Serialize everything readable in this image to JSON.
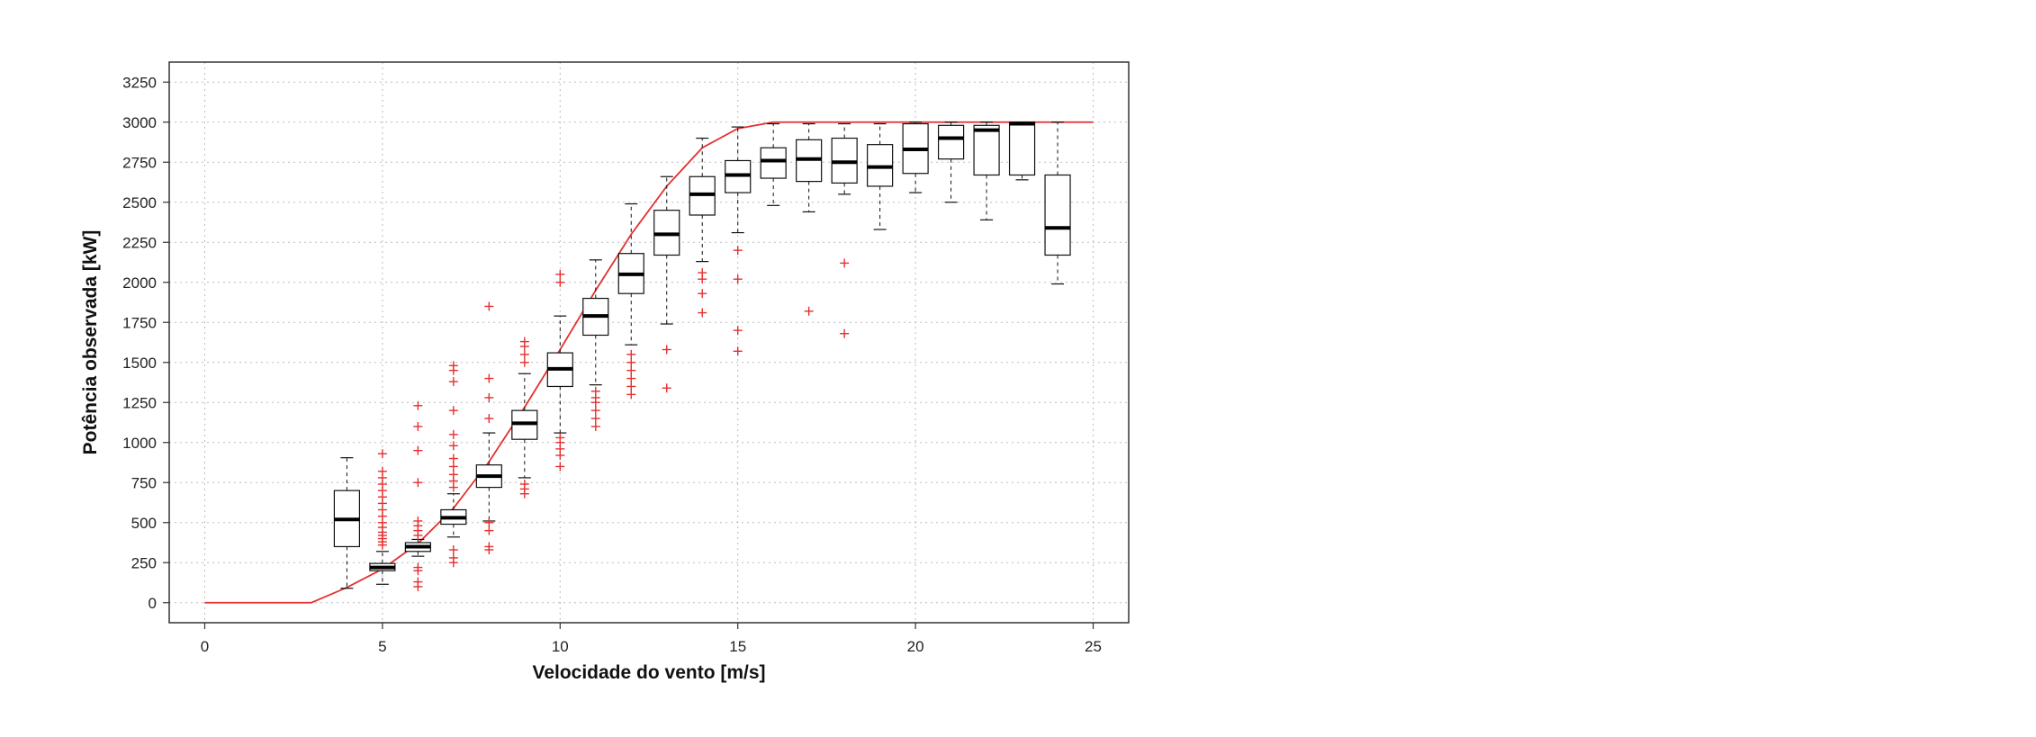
{
  "chart_data": {
    "type": "box",
    "title": "",
    "xlabel": "Velocidade do vento [m/s]",
    "ylabel": "Potência observada [kW]",
    "xlim": [
      -1,
      26
    ],
    "ylim": [
      -125,
      3375
    ],
    "xticks": [
      0,
      5,
      10,
      15,
      20,
      25
    ],
    "yticks": [
      0,
      250,
      500,
      750,
      1000,
      1250,
      1500,
      1750,
      2000,
      2250,
      2500,
      2750,
      3000,
      3250
    ],
    "grid": true,
    "legend": "none",
    "colors": {
      "box": "#111111",
      "outlier": "#e53030",
      "curve": "#e53030",
      "grid": "#bbbbbb"
    },
    "boxes": [
      {
        "x": 4,
        "whisker_low": 90,
        "q1": 350,
        "median": 520,
        "q3": 700,
        "whisker_high": 905,
        "outliers": []
      },
      {
        "x": 5,
        "whisker_low": 115,
        "q1": 200,
        "median": 220,
        "q3": 245,
        "whisker_high": 320,
        "outliers": [
          360,
          380,
          400,
          420,
          440,
          470,
          500,
          540,
          580,
          620,
          660,
          700,
          740,
          780,
          820,
          930
        ]
      },
      {
        "x": 6,
        "whisker_low": 290,
        "q1": 320,
        "median": 350,
        "q3": 375,
        "whisker_high": 395,
        "outliers": [
          100,
          130,
          200,
          220,
          420,
          450,
          480,
          510,
          750,
          950,
          1100,
          1230
        ]
      },
      {
        "x": 7,
        "whisker_low": 410,
        "q1": 490,
        "median": 530,
        "q3": 580,
        "whisker_high": 680,
        "outliers": [
          250,
          280,
          330,
          720,
          760,
          800,
          850,
          900,
          980,
          1050,
          1200,
          1380,
          1450,
          1480
        ]
      },
      {
        "x": 8,
        "whisker_low": 510,
        "q1": 720,
        "median": 790,
        "q3": 860,
        "whisker_high": 1060,
        "outliers": [
          330,
          350,
          450,
          500,
          1150,
          1280,
          1400,
          1850
        ]
      },
      {
        "x": 9,
        "whisker_low": 780,
        "q1": 1020,
        "median": 1120,
        "q3": 1200,
        "whisker_high": 1430,
        "outliers": [
          680,
          710,
          740,
          1500,
          1550,
          1600,
          1630
        ]
      },
      {
        "x": 10,
        "whisker_low": 1060,
        "q1": 1350,
        "median": 1460,
        "q3": 1560,
        "whisker_high": 1790,
        "outliers": [
          850,
          920,
          960,
          1000,
          1030,
          2000,
          2050
        ]
      },
      {
        "x": 11,
        "whisker_low": 1360,
        "q1": 1670,
        "median": 1790,
        "q3": 1900,
        "whisker_high": 2140,
        "outliers": [
          1100,
          1150,
          1200,
          1250,
          1280,
          1320
        ]
      },
      {
        "x": 12,
        "whisker_low": 1610,
        "q1": 1930,
        "median": 2050,
        "q3": 2180,
        "whisker_high": 2490,
        "outliers": [
          1300,
          1350,
          1400,
          1450,
          1500,
          1550
        ]
      },
      {
        "x": 13,
        "whisker_low": 1740,
        "q1": 2170,
        "median": 2300,
        "q3": 2450,
        "whisker_high": 2660,
        "outliers": [
          1340,
          1580
        ]
      },
      {
        "x": 14,
        "whisker_low": 2130,
        "q1": 2420,
        "median": 2550,
        "q3": 2660,
        "whisker_high": 2900,
        "outliers": [
          1810,
          1930,
          2020,
          2060
        ]
      },
      {
        "x": 15,
        "whisker_low": 2310,
        "q1": 2560,
        "median": 2670,
        "q3": 2760,
        "whisker_high": 2970,
        "outliers": [
          1570,
          1700,
          2020,
          2200
        ]
      },
      {
        "x": 16,
        "whisker_low": 2480,
        "q1": 2650,
        "median": 2760,
        "q3": 2840,
        "whisker_high": 2990,
        "outliers": []
      },
      {
        "x": 17,
        "whisker_low": 2440,
        "q1": 2630,
        "median": 2770,
        "q3": 2890,
        "whisker_high": 2990,
        "outliers": [
          1820
        ]
      },
      {
        "x": 18,
        "whisker_low": 2550,
        "q1": 2620,
        "median": 2750,
        "q3": 2900,
        "whisker_high": 2990,
        "outliers": [
          1680,
          2120
        ]
      },
      {
        "x": 19,
        "whisker_low": 2330,
        "q1": 2600,
        "median": 2720,
        "q3": 2860,
        "whisker_high": 2990,
        "outliers": []
      },
      {
        "x": 20,
        "whisker_low": 2560,
        "q1": 2680,
        "median": 2830,
        "q3": 2990,
        "whisker_high": 3000,
        "outliers": []
      },
      {
        "x": 21,
        "whisker_low": 2500,
        "q1": 2770,
        "median": 2900,
        "q3": 2980,
        "whisker_high": 3000,
        "outliers": []
      },
      {
        "x": 22,
        "whisker_low": 2390,
        "q1": 2670,
        "median": 2950,
        "q3": 2980,
        "whisker_high": 3000,
        "outliers": []
      },
      {
        "x": 23,
        "whisker_low": 2640,
        "q1": 2670,
        "median": 2990,
        "q3": 3000,
        "whisker_high": 3000,
        "outliers": []
      },
      {
        "x": 24,
        "whisker_low": 1990,
        "q1": 2170,
        "median": 2340,
        "q3": 2670,
        "whisker_high": 3000,
        "outliers": []
      }
    ],
    "curve": {
      "x": [
        0,
        3,
        4,
        5,
        6,
        7,
        8,
        9,
        10,
        11,
        12,
        13,
        14,
        15,
        16,
        17,
        18,
        19,
        20,
        21,
        22,
        23,
        24,
        25
      ],
      "y": [
        0,
        0,
        95,
        210,
        370,
        590,
        880,
        1220,
        1580,
        1950,
        2300,
        2600,
        2840,
        2960,
        3000,
        3000,
        3000,
        3000,
        3000,
        3000,
        3000,
        3000,
        3000,
        3000
      ]
    }
  }
}
